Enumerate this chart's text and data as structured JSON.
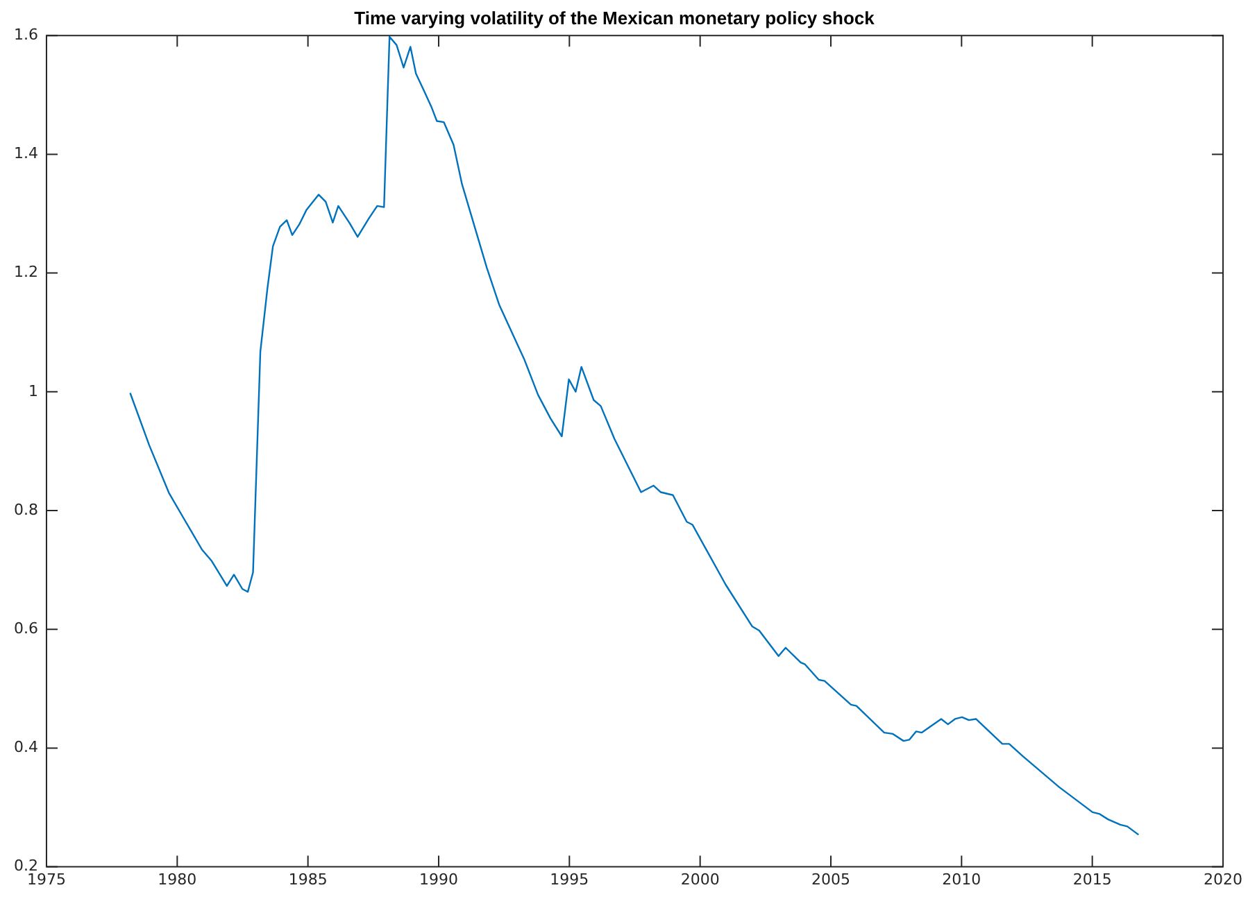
{
  "chart_data": {
    "type": "line",
    "title": "Time varying volatility of the Mexican monetary policy shock",
    "x": [
      1978.2,
      1978.93,
      1979.68,
      1980.26,
      1980.95,
      1981.32,
      1981.9,
      1982.17,
      1982.49,
      1982.7,
      1982.9,
      1983.18,
      1983.45,
      1983.66,
      1983.93,
      1984.19,
      1984.4,
      1984.67,
      1984.94,
      1985.41,
      1985.68,
      1985.95,
      1986.16,
      1986.58,
      1986.9,
      1987.33,
      1987.65,
      1987.91,
      1988.12,
      1988.39,
      1988.66,
      1988.92,
      1989.13,
      1989.45,
      1989.72,
      1989.93,
      1990.2,
      1990.57,
      1990.89,
      1991.84,
      1992.32,
      1993.28,
      1993.8,
      1994.28,
      1994.71,
      1994.98,
      1995.24,
      1995.46,
      1995.93,
      1996.2,
      1996.73,
      1997.74,
      1998.22,
      1998.49,
      1998.96,
      1999.49,
      1999.71,
      2000.98,
      2001.99,
      2002.26,
      2003.0,
      2003.27,
      2003.85,
      2004.01,
      2004.54,
      2004.76,
      2005.77,
      2005.98,
      2007.04,
      2007.36,
      2007.78,
      2008.0,
      2008.26,
      2008.47,
      2009.22,
      2009.48,
      2009.75,
      2010.02,
      2010.28,
      2010.55,
      2011.56,
      2011.82,
      2012.35,
      2013.74,
      2015.01,
      2015.28,
      2015.6,
      2016.07,
      2016.34,
      2016.77
    ],
    "series": [
      {
        "color": "#0072bd",
        "values": [
          0.998,
          0.91,
          0.83,
          0.786,
          0.734,
          0.715,
          0.673,
          0.692,
          0.668,
          0.663,
          0.696,
          1.068,
          1.174,
          1.245,
          1.278,
          1.289,
          1.264,
          1.282,
          1.306,
          1.332,
          1.32,
          1.285,
          1.313,
          1.285,
          1.261,
          1.292,
          1.313,
          1.311,
          1.598,
          1.584,
          1.546,
          1.581,
          1.536,
          1.506,
          1.48,
          1.456,
          1.454,
          1.416,
          1.35,
          1.209,
          1.146,
          1.054,
          0.995,
          0.955,
          0.925,
          1.021,
          1.0,
          1.042,
          0.986,
          0.976,
          0.92,
          0.831,
          0.842,
          0.831,
          0.826,
          0.781,
          0.776,
          0.675,
          0.605,
          0.598,
          0.555,
          0.569,
          0.544,
          0.541,
          0.515,
          0.513,
          0.473,
          0.471,
          0.426,
          0.424,
          0.412,
          0.414,
          0.428,
          0.426,
          0.449,
          0.44,
          0.449,
          0.452,
          0.447,
          0.449,
          0.407,
          0.407,
          0.386,
          0.334,
          0.292,
          0.289,
          0.28,
          0.271,
          0.268,
          0.254
        ]
      }
    ],
    "xlim": [
      1975,
      2020
    ],
    "xticks": [
      1975,
      1980,
      1985,
      1990,
      1995,
      2000,
      2005,
      2010,
      2015,
      2020
    ],
    "ylim": [
      0.2,
      1.6
    ],
    "yticks": [
      0.2,
      0.4,
      0.6,
      0.8,
      1,
      1.2,
      1.4,
      1.6
    ],
    "grid": false,
    "legend": false,
    "marker": "none",
    "line_style": "solid"
  }
}
